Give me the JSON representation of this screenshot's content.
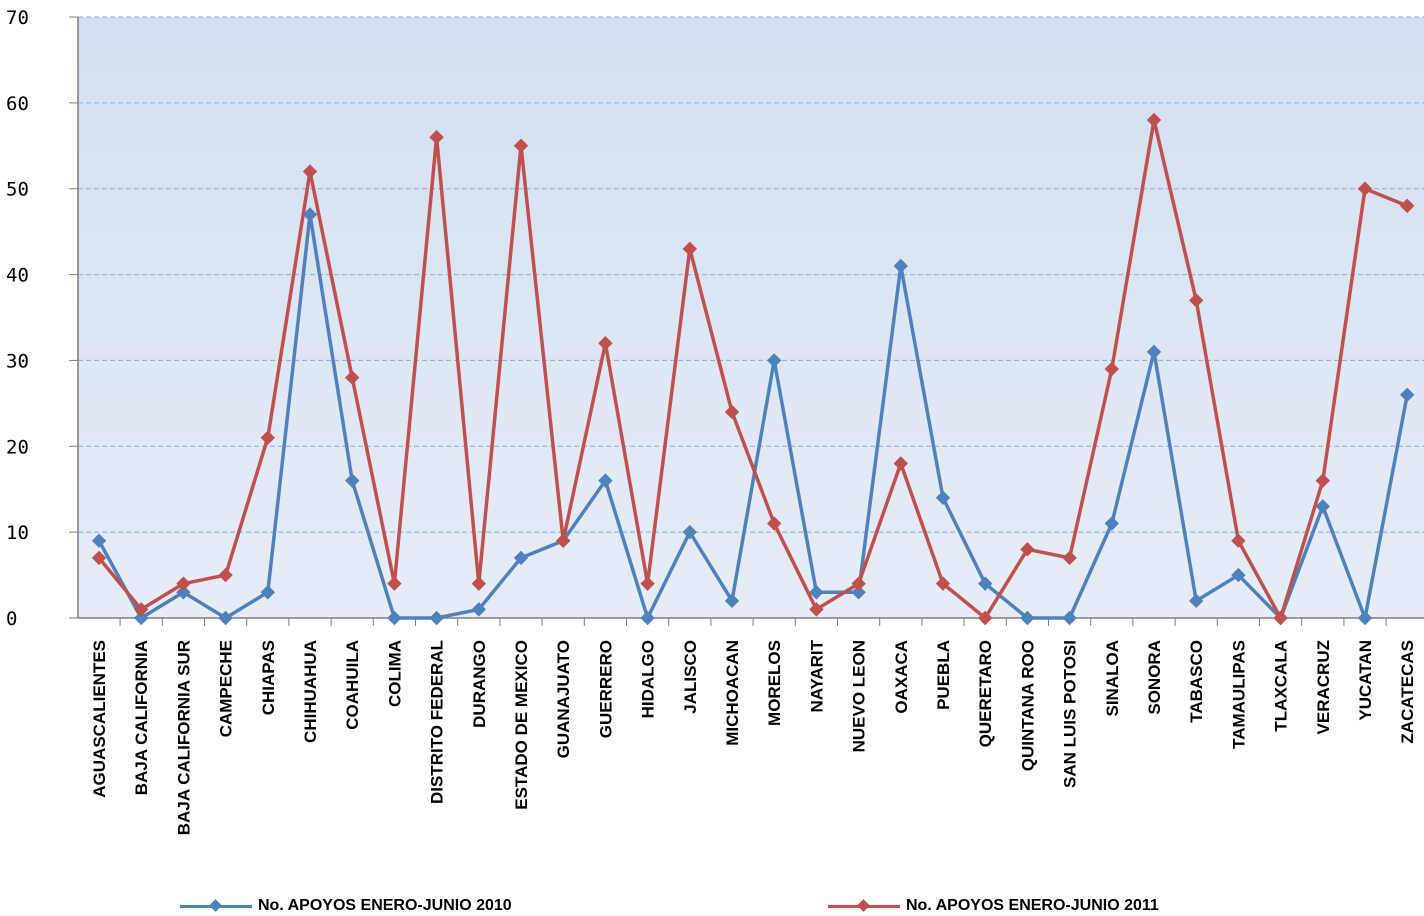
{
  "chart_data": {
    "type": "line",
    "categories": [
      "AGUASCALIENTES",
      "BAJA CALIFORNIA",
      "BAJA CALIFORNIA SUR",
      "CAMPECHE",
      "CHIAPAS",
      "CHIHUAHUA",
      "COAHUILA",
      "COLIMA",
      "DISTRITO FEDERAL",
      "DURANGO",
      "ESTADO DE MEXICO",
      "GUANAJUATO",
      "GUERRERO",
      "HIDALGO",
      "JALISCO",
      "MICHOACAN",
      "MORELOS",
      "NAYARIT",
      "NUEVO LEON",
      "OAXACA",
      "PUEBLA",
      "QUERETARO",
      "QUINTANA ROO",
      "SAN LUIS POTOSI",
      "SINALOA",
      "SONORA",
      "TABASCO",
      "TAMAULIPAS",
      "TLAXCALA",
      "VERACRUZ",
      "YUCATAN",
      "ZACATECAS"
    ],
    "series": [
      {
        "name": "No. APOYOS ENERO-JUNIO 2010",
        "color": "#4F81BD",
        "values": [
          9,
          0,
          3,
          0,
          3,
          47,
          16,
          0,
          0,
          1,
          7,
          9,
          16,
          0,
          10,
          2,
          30,
          3,
          3,
          41,
          14,
          4,
          0,
          0,
          11,
          31,
          2,
          5,
          0,
          13,
          0,
          26
        ]
      },
      {
        "name": "No. APOYOS ENERO-JUNIO 2011",
        "color": "#C0504D",
        "values": [
          7,
          1,
          4,
          5,
          21,
          52,
          28,
          4,
          56,
          4,
          55,
          9,
          32,
          4,
          43,
          24,
          11,
          1,
          4,
          18,
          4,
          0,
          8,
          7,
          29,
          58,
          37,
          9,
          0,
          16,
          50,
          48
        ]
      }
    ],
    "y_ticks": [
      "0",
      "10",
      "20",
      "30",
      "40",
      "50",
      "60",
      "70"
    ],
    "ylim": [
      0,
      70
    ],
    "grid": true,
    "plot_background": "#DCE6F2",
    "legend_position": "bottom"
  }
}
